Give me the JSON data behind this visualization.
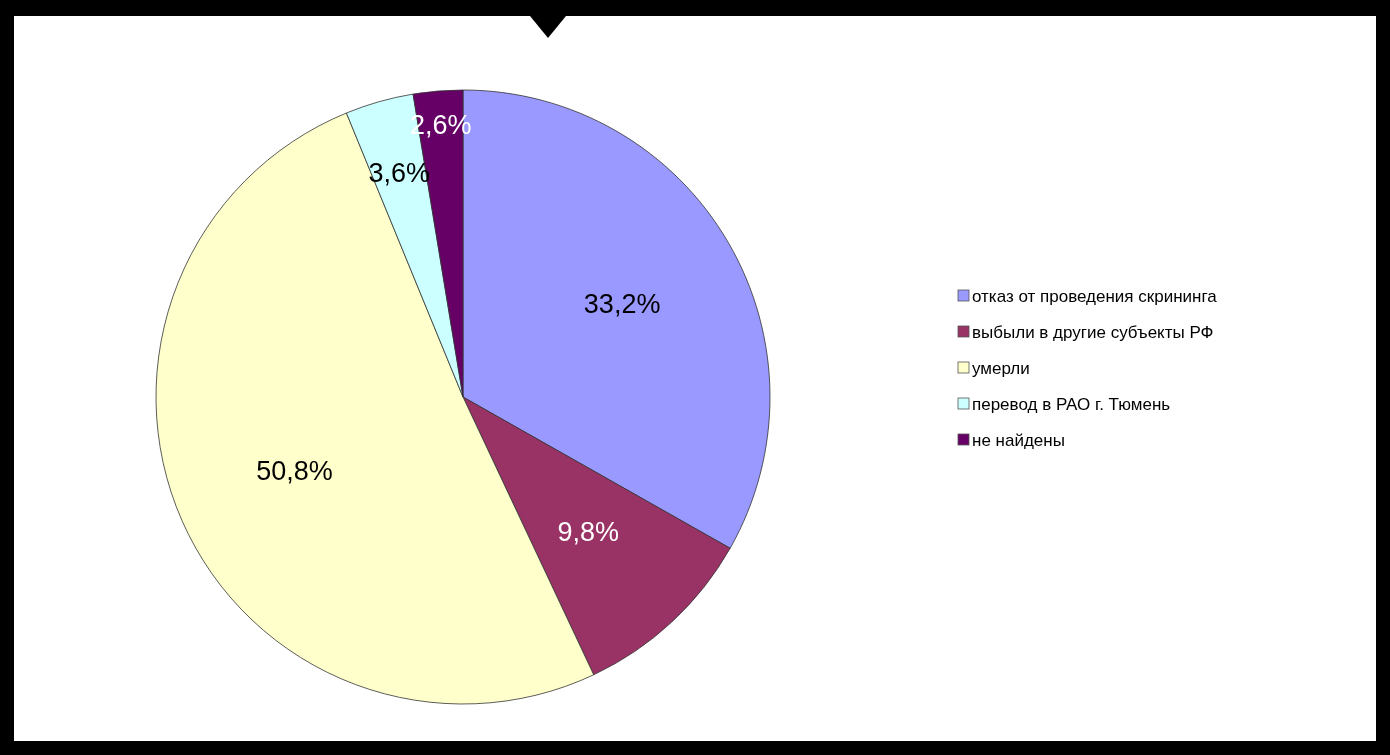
{
  "chart_data": {
    "type": "pie",
    "categories": [
      "отказ от проведения  скрининга",
      "выбыли в другие субъекты РФ",
      "умерли",
      "перевод в РАО г. Тюмень",
      "не найдены"
    ],
    "values": [
      33.2,
      9.8,
      50.8,
      3.6,
      2.6
    ],
    "value_labels": [
      "33,2%",
      "9,8%",
      "50,8%",
      "3,6%",
      "2,6%"
    ],
    "colors": [
      "#9999ff",
      "#993366",
      "#ffffcc",
      "#ccffff",
      "#660066"
    ],
    "legend": "right"
  }
}
